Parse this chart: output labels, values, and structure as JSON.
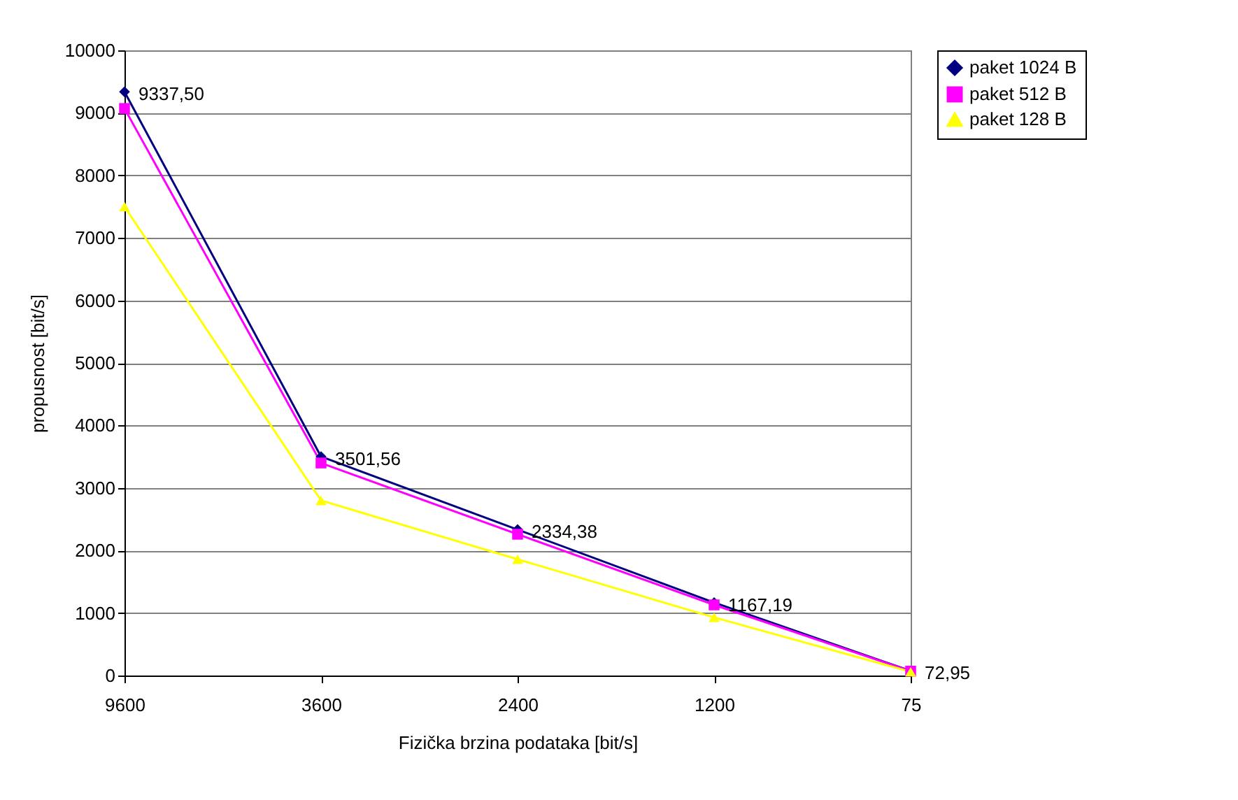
{
  "chart_data": {
    "type": "line",
    "xlabel": "Fizička brzina podataka [bit/s]",
    "ylabel": "propusnost [bit/s]",
    "categories": [
      "9600",
      "3600",
      "2400",
      "1200",
      "75"
    ],
    "series": [
      {
        "name": "paket 1024 B",
        "color": "#000080",
        "marker": "diamond",
        "values": [
          9337.5,
          3501.56,
          2334.38,
          1167.19,
          72.95
        ],
        "value_labels": [
          "9337,50",
          "3501,56",
          "2334,38",
          "1167,19",
          "72,95"
        ]
      },
      {
        "name": "paket 512 B",
        "color": "#ff00ff",
        "marker": "square",
        "values": [
          9070,
          3400,
          2260,
          1130,
          70
        ]
      },
      {
        "name": "paket 128 B",
        "color": "#ffff00",
        "marker": "triangle",
        "values": [
          7500,
          2800,
          1860,
          930,
          60
        ]
      }
    ],
    "ylim": [
      0,
      10000
    ],
    "yticks": [
      0,
      1000,
      2000,
      3000,
      4000,
      5000,
      6000,
      7000,
      8000,
      9000,
      10000
    ],
    "grid": "y",
    "legend": "right",
    "line_style": "solid"
  }
}
